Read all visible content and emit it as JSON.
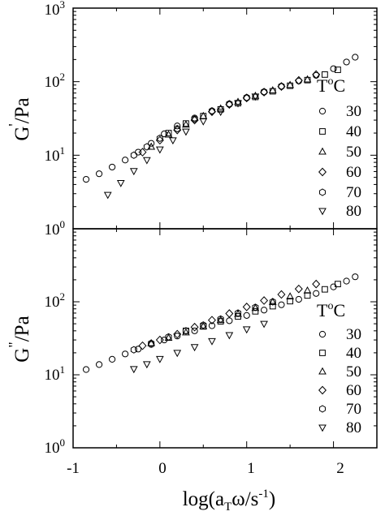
{
  "chart_data": {
    "type": "scatter",
    "x_axis": {
      "label_main": "log(a",
      "label_sub": "T",
      "label_tail": "ω/s",
      "label_exp": "-1",
      "label_close": ")",
      "range": [
        -1,
        2.5
      ],
      "ticks": [
        "-1",
        "0",
        "1",
        "2"
      ]
    },
    "y_tick_base": "10",
    "y_tick_exponents": [
      "0",
      "1",
      "2",
      "3"
    ],
    "legend_title": {
      "t": "T",
      "sup": "o",
      "unit": "C"
    },
    "legend_entries": [
      "30",
      "40",
      "50",
      "60",
      "70",
      "80"
    ],
    "marker_shapes": [
      "circle",
      "square",
      "triangle-up",
      "diamond",
      "hexagon",
      "triangle-down"
    ],
    "panels": [
      {
        "ylabel_main": "G",
        "ylabel_prime": "'",
        "ylabel_unit": "/Pa",
        "yscale": "log",
        "ylim": [
          1,
          1000
        ],
        "series": [
          {
            "name": "30",
            "x": [
              -0.85,
              -0.7,
              -0.55,
              -0.4,
              -0.25,
              -0.1,
              0.05,
              0.2,
              0.4,
              0.6,
              0.8,
              1.0,
              1.2,
              1.4,
              1.6,
              1.8,
              2.0,
              2.15,
              2.25
            ],
            "y": [
              4.7,
              5.6,
              6.9,
              8.6,
              11,
              14.5,
              19.5,
              25,
              32,
              40,
              49,
              60,
              72,
              86,
              102,
              122,
              150,
              185,
              215
            ]
          },
          {
            "name": "40",
            "x": [
              0.1,
              0.3,
              0.5,
              0.7,
              0.9,
              1.1,
              1.3,
              1.5,
              1.7,
              1.9,
              2.05
            ],
            "y": [
              20,
              27,
              34,
              42,
              51,
              62,
              74,
              88,
              105,
              125,
              145
            ]
          },
          {
            "name": "50",
            "x": [
              -0.1,
              0.1,
              0.3,
              0.5,
              0.7,
              0.9,
              1.1,
              1.3,
              1.5,
              1.7
            ],
            "y": [
              13,
              19,
              26,
              34,
              43,
              53,
              64,
              76,
              90,
              107
            ]
          },
          {
            "name": "60",
            "x": [
              -0.2,
              0.0,
              0.2,
              0.4,
              0.6,
              0.8,
              1.0,
              1.2,
              1.4,
              1.6,
              1.8
            ],
            "y": [
              11,
              16,
              22,
              30,
              39,
              49,
              60,
              72,
              86,
              104,
              125
            ]
          },
          {
            "name": "70",
            "x": [
              -0.3,
              -0.15,
              0.0,
              0.2,
              0.4,
              0.6,
              0.8,
              1.0,
              1.2,
              1.4
            ],
            "y": [
              10,
              13,
              17,
              23,
              31,
              40,
              50,
              61,
              73,
              87
            ]
          },
          {
            "name": "80",
            "x": [
              -0.6,
              -0.45,
              -0.3,
              -0.15,
              0.0,
              0.15,
              0.3,
              0.5,
              0.7,
              0.9,
              1.1
            ],
            "y": [
              2.9,
              4.2,
              6.1,
              8.6,
              12,
              16,
              21,
              29,
              39,
              51,
              63
            ]
          }
        ]
      },
      {
        "ylabel_main": "G",
        "ylabel_prime": "\"",
        "ylabel_unit": "/Pa",
        "yscale": "log",
        "ylim": [
          1,
          1000
        ],
        "series": [
          {
            "name": "30",
            "x": [
              -0.85,
              -0.7,
              -0.55,
              -0.4,
              -0.25,
              -0.1,
              0.05,
              0.2,
              0.4,
              0.6,
              0.8,
              1.0,
              1.2,
              1.4,
              1.6,
              1.8,
              2.0,
              2.15,
              2.25
            ],
            "y": [
              11.8,
              13.8,
              16.3,
              19.3,
              22.5,
              26,
              30,
              34,
              40,
              47,
              55,
              65,
              77,
              91,
              108,
              130,
              160,
              192,
              220
            ]
          },
          {
            "name": "40",
            "x": [
              0.3,
              0.5,
              0.7,
              0.9,
              1.1,
              1.3,
              1.5,
              1.7,
              1.9,
              2.05
            ],
            "y": [
              40,
              46,
              54,
              63,
              74,
              87,
              102,
              122,
              148,
              175
            ]
          },
          {
            "name": "50",
            "x": [
              -0.1,
              0.1,
              0.3,
              0.5,
              0.7,
              0.9,
              1.1,
              1.3,
              1.5,
              1.7
            ],
            "y": [
              27,
              32,
              38,
              46,
              56,
              68,
              82,
              99,
              118,
              142
            ]
          },
          {
            "name": "60",
            "x": [
              -0.2,
              0.0,
              0.2,
              0.4,
              0.6,
              0.8,
              1.0,
              1.2,
              1.4,
              1.6,
              1.8
            ],
            "y": [
              25,
              30,
              36,
              45,
              56,
              69,
              85,
              104,
              126,
              150,
              175
            ]
          },
          {
            "name": "70",
            "x": [
              -0.3,
              -0.1,
              0.1,
              0.3,
              0.5,
              0.7,
              0.9,
              1.1,
              1.3
            ],
            "y": [
              22,
              27,
              33,
              40,
              48,
              58,
              70,
              84,
              100
            ]
          },
          {
            "name": "80",
            "x": [
              -0.3,
              -0.15,
              0.0,
              0.2,
              0.4,
              0.6,
              0.8,
              1.0,
              1.2
            ],
            "y": [
              12,
              14,
              16.5,
              20,
              24,
              29,
              35,
              42,
              50
            ]
          }
        ]
      }
    ]
  }
}
